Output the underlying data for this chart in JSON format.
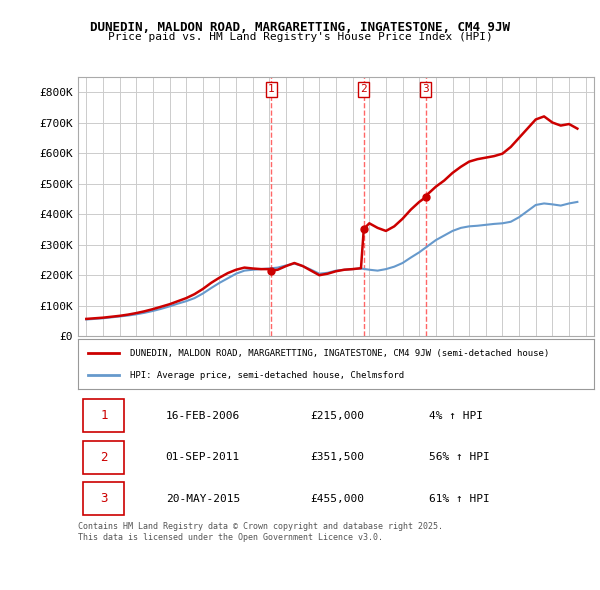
{
  "title1": "DUNEDIN, MALDON ROAD, MARGARETTING, INGATESTONE, CM4 9JW",
  "title2": "Price paid vs. HM Land Registry's House Price Index (HPI)",
  "legend_property": "DUNEDIN, MALDON ROAD, MARGARETTING, INGATESTONE, CM4 9JW (semi-detached house)",
  "legend_hpi": "HPI: Average price, semi-detached house, Chelmsford",
  "footer": "Contains HM Land Registry data © Crown copyright and database right 2025.\nThis data is licensed under the Open Government Licence v3.0.",
  "sales": [
    {
      "num": 1,
      "date": "16-FEB-2006",
      "price": 215000,
      "pct": "4%",
      "year_x": 2006.12
    },
    {
      "num": 2,
      "date": "01-SEP-2011",
      "price": 351500,
      "pct": "56%",
      "year_x": 2011.67
    },
    {
      "num": 3,
      "date": "20-MAY-2015",
      "price": 455000,
      "pct": "61%",
      "year_x": 2015.38
    }
  ],
  "property_color": "#cc0000",
  "hpi_color": "#6699cc",
  "vline_color": "#ff6666",
  "background_chart": "#ffffff",
  "background_fig": "#ffffff",
  "grid_color": "#cccccc",
  "ylim": [
    0,
    850000
  ],
  "yticks": [
    0,
    100000,
    200000,
    300000,
    400000,
    500000,
    600000,
    700000,
    800000
  ],
  "ytick_labels": [
    "£0",
    "£100K",
    "£200K",
    "£300K",
    "£400K",
    "£500K",
    "£600K",
    "£700K",
    "£800K"
  ],
  "xlim_start": 1994.5,
  "xlim_end": 2025.5,
  "hpi_data_x": [
    1995,
    1995.5,
    1996,
    1996.5,
    1997,
    1997.5,
    1998,
    1998.5,
    1999,
    1999.5,
    2000,
    2000.5,
    2001,
    2001.5,
    2002,
    2002.5,
    2003,
    2003.5,
    2004,
    2004.5,
    2005,
    2005.5,
    2006,
    2006.5,
    2007,
    2007.5,
    2008,
    2008.5,
    2009,
    2009.5,
    2010,
    2010.5,
    2011,
    2011.5,
    2012,
    2012.5,
    2013,
    2013.5,
    2014,
    2014.5,
    2015,
    2015.5,
    2016,
    2016.5,
    2017,
    2017.5,
    2018,
    2018.5,
    2019,
    2019.5,
    2020,
    2020.5,
    2021,
    2021.5,
    2022,
    2022.5,
    2023,
    2023.5,
    2024,
    2024.5
  ],
  "hpi_data_y": [
    55000,
    57000,
    59000,
    62000,
    65000,
    68000,
    72000,
    77000,
    83000,
    90000,
    98000,
    107000,
    115000,
    125000,
    140000,
    158000,
    175000,
    190000,
    205000,
    215000,
    218000,
    220000,
    222000,
    225000,
    232000,
    238000,
    230000,
    218000,
    205000,
    208000,
    215000,
    218000,
    220000,
    222000,
    218000,
    215000,
    220000,
    228000,
    240000,
    258000,
    275000,
    295000,
    315000,
    330000,
    345000,
    355000,
    360000,
    362000,
    365000,
    368000,
    370000,
    375000,
    390000,
    410000,
    430000,
    435000,
    432000,
    428000,
    435000,
    440000
  ],
  "property_data_x": [
    1995,
    1995.5,
    1996,
    1996.5,
    1997,
    1997.5,
    1998,
    1998.5,
    1999,
    1999.5,
    2000,
    2000.5,
    2001,
    2001.5,
    2002,
    2002.5,
    2003,
    2003.5,
    2004,
    2004.5,
    2005,
    2005.5,
    2006,
    2006.12,
    2006.5,
    2007,
    2007.5,
    2008,
    2008.5,
    2009,
    2009.5,
    2010,
    2010.5,
    2011,
    2011.5,
    2011.67,
    2012,
    2012.5,
    2013,
    2013.5,
    2014,
    2014.5,
    2015,
    2015.38,
    2015.5,
    2016,
    2016.5,
    2017,
    2017.5,
    2018,
    2018.5,
    2019,
    2019.5,
    2020,
    2020.5,
    2021,
    2021.5,
    2022,
    2022.5,
    2023,
    2023.5,
    2024,
    2024.5
  ],
  "property_data_y": [
    57000,
    59000,
    61000,
    64000,
    67000,
    71000,
    76000,
    82000,
    89000,
    97000,
    105000,
    115000,
    125000,
    138000,
    155000,
    175000,
    192000,
    207000,
    218000,
    225000,
    222000,
    220000,
    220000,
    215000,
    218000,
    230000,
    240000,
    230000,
    215000,
    200000,
    205000,
    213000,
    218000,
    220000,
    223000,
    351500,
    370000,
    355000,
    345000,
    360000,
    385000,
    415000,
    440000,
    455000,
    465000,
    490000,
    510000,
    535000,
    555000,
    572000,
    580000,
    585000,
    590000,
    598000,
    620000,
    650000,
    680000,
    710000,
    720000,
    700000,
    690000,
    695000,
    680000
  ]
}
